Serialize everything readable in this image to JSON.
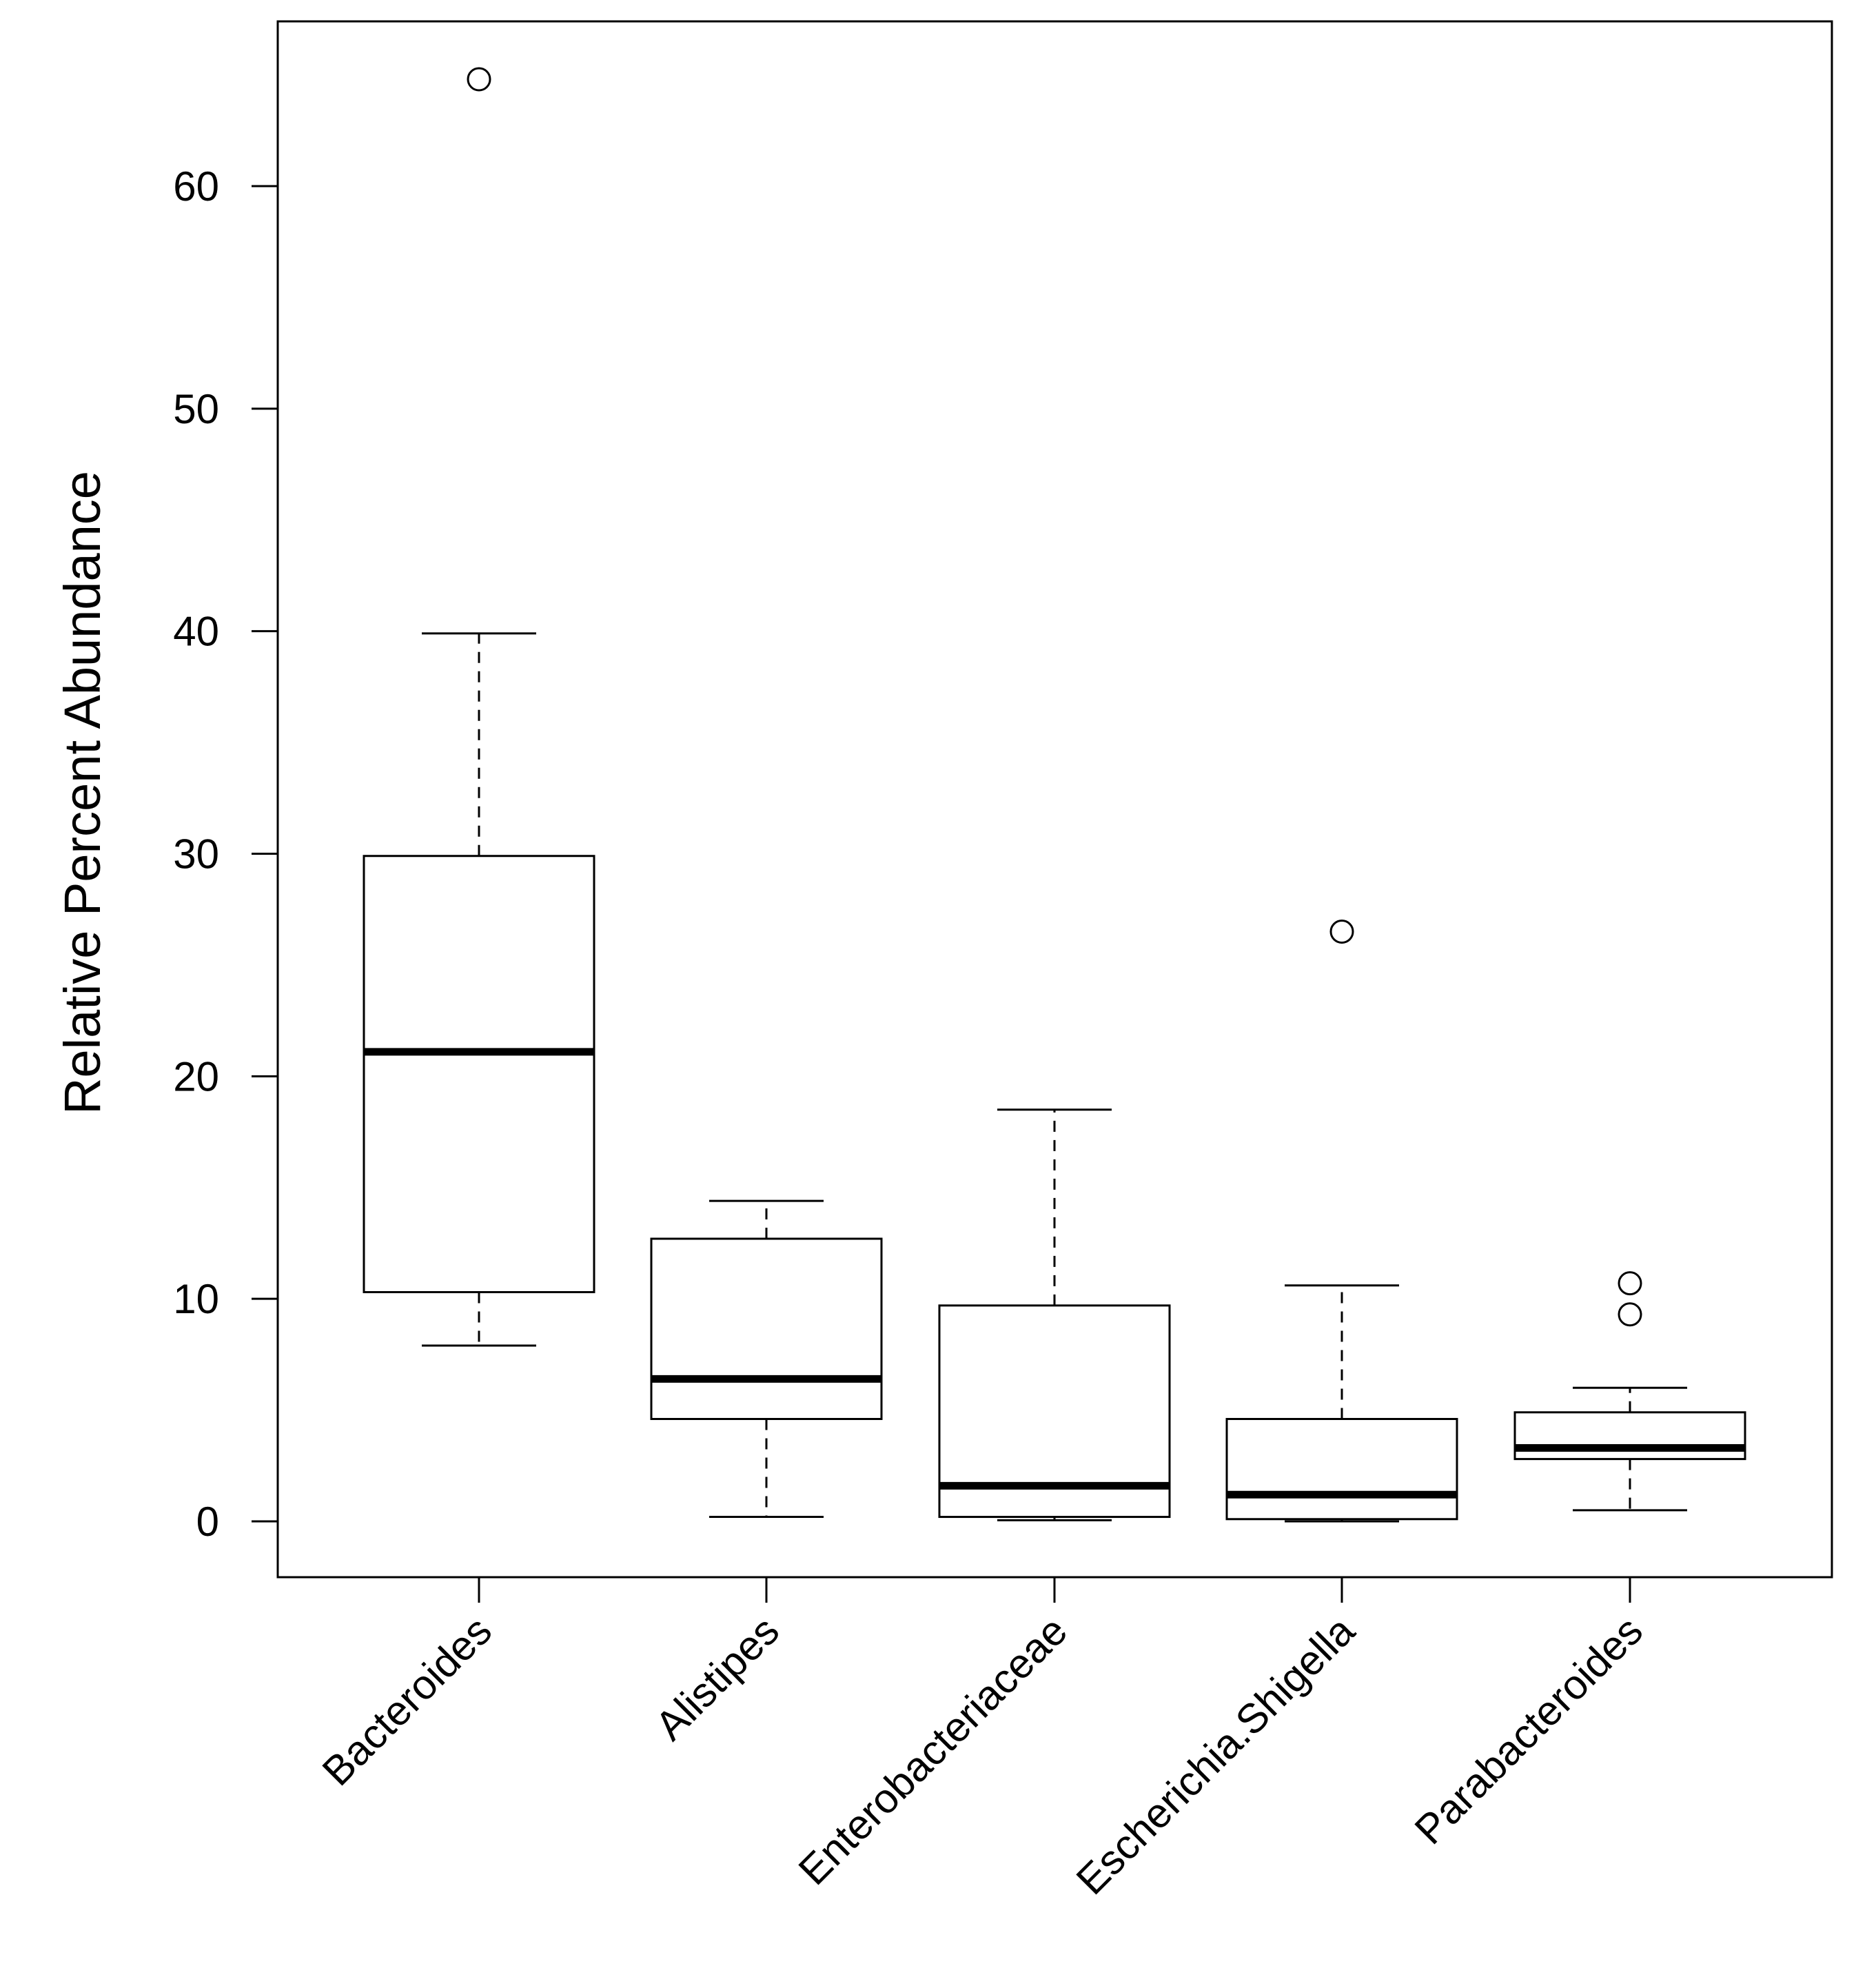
{
  "chart_data": {
    "type": "box",
    "title": "",
    "xlabel": "",
    "ylabel": "Relative Percent Abundance",
    "ylim": [
      -2.5,
      67.5
    ],
    "yticks": [
      0,
      10,
      20,
      30,
      40,
      50,
      60
    ],
    "grid": false,
    "categories": [
      "Bacteroides",
      "Alistipes",
      "Enterobacteriaceae",
      "Escherichia.Shigella",
      "Parabacteroides"
    ],
    "boxes": [
      {
        "whisker_low": 7.9,
        "q1": 10.3,
        "median": 21.1,
        "q3": 29.9,
        "whisker_high": 39.9,
        "outliers": [
          64.8
        ]
      },
      {
        "whisker_low": 0.2,
        "q1": 4.6,
        "median": 6.4,
        "q3": 12.7,
        "whisker_high": 14.4,
        "outliers": []
      },
      {
        "whisker_low": 0.05,
        "q1": 0.2,
        "median": 1.6,
        "q3": 9.7,
        "whisker_high": 18.5,
        "outliers": []
      },
      {
        "whisker_low": 0.0,
        "q1": 0.1,
        "median": 1.2,
        "q3": 4.6,
        "whisker_high": 10.6,
        "outliers": [
          26.5
        ]
      },
      {
        "whisker_low": 0.5,
        "q1": 2.8,
        "median": 3.3,
        "q3": 4.9,
        "whisker_high": 6.0,
        "outliers": [
          9.3,
          10.7
        ]
      }
    ]
  }
}
